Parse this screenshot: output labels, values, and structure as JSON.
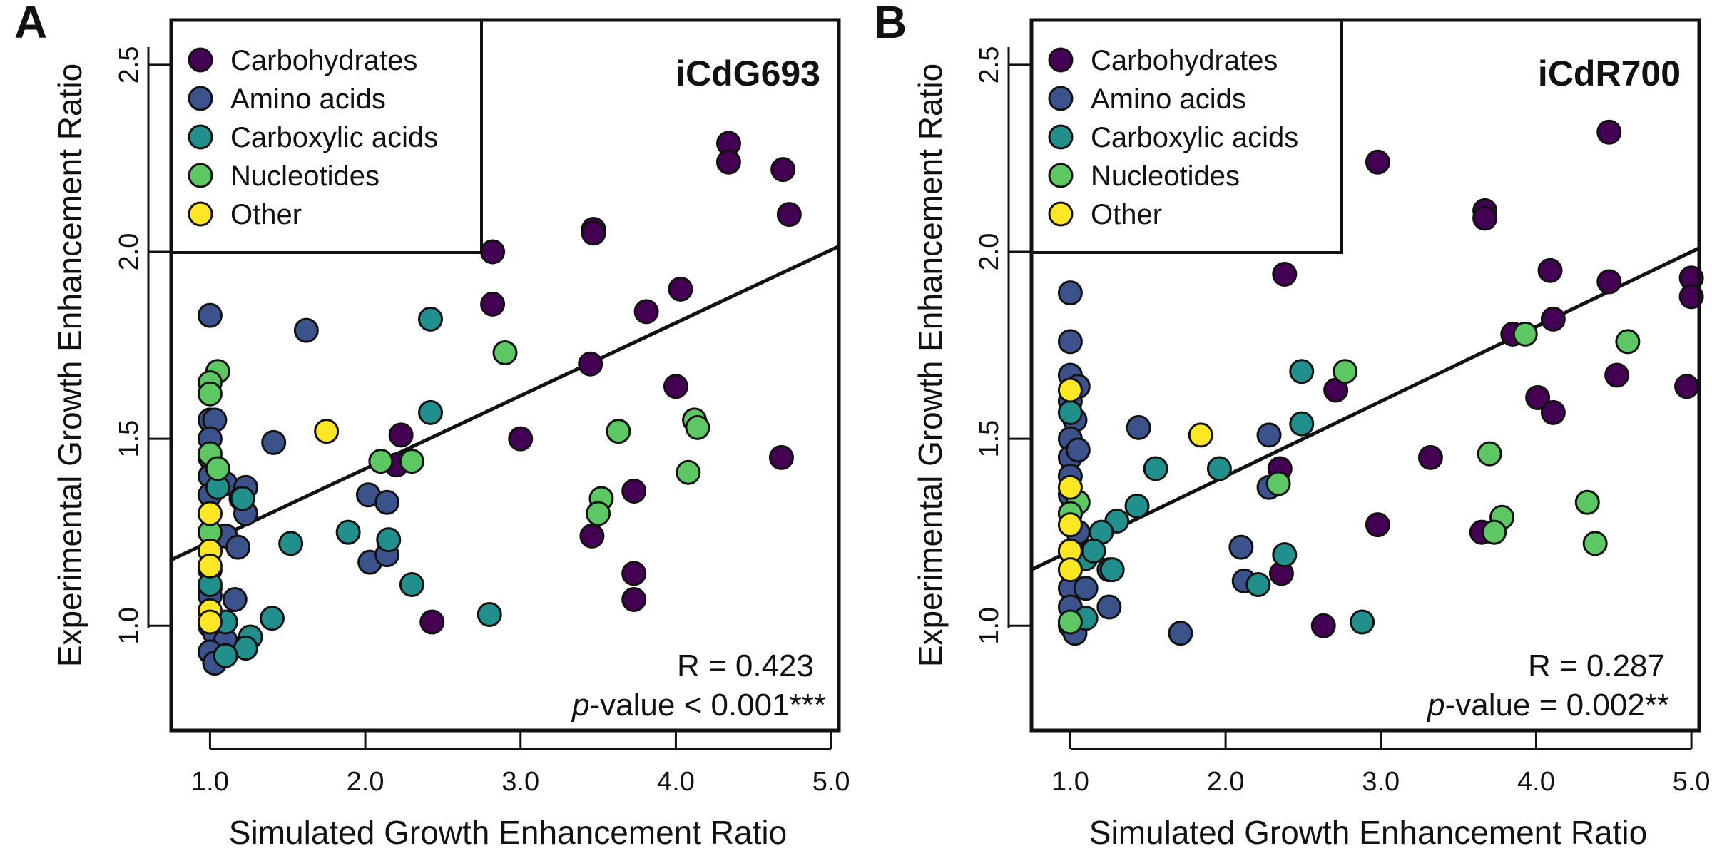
{
  "chart_data": [
    {
      "type": "scatter",
      "panel": "A",
      "model": "iCdG693",
      "xlabel": "Simulated Growth Enhancement Ratio",
      "ylabel": "Experimental Growth Enhancement Ratio",
      "xlim": [
        0.75,
        5.05
      ],
      "ylim": [
        0.72,
        2.62
      ],
      "xticks": [
        1.0,
        2.0,
        3.0,
        4.0,
        5.0
      ],
      "xtick_labels": [
        "1.0",
        "2.0",
        "3.0",
        "4.0",
        "5.0"
      ],
      "yticks": [
        1.0,
        1.5,
        2.0,
        2.5
      ],
      "ytick_labels": [
        "1.0",
        "1.5",
        "2.0",
        "2.5"
      ],
      "grid": false,
      "legend_position": "top-left",
      "r_text": "R = 0.423",
      "p_italic": "p",
      "p_rest": "-value < 0.001***",
      "regression": {
        "slope": 0.195,
        "intercept": 1.03
      },
      "series": [
        {
          "name": "Carbohydrates",
          "color": "#440154",
          "points": [
            [
              4.34,
              2.29
            ],
            [
              4.34,
              2.24
            ],
            [
              4.69,
              2.22
            ],
            [
              4.73,
              2.1
            ],
            [
              3.47,
              2.06
            ],
            [
              3.47,
              2.05
            ],
            [
              2.82,
              2.0
            ],
            [
              2.82,
              1.86
            ],
            [
              4.03,
              1.9
            ],
            [
              3.81,
              1.84
            ],
            [
              3.45,
              1.7
            ],
            [
              4.0,
              1.64
            ],
            [
              3.0,
              1.5
            ],
            [
              2.23,
              1.51
            ],
            [
              2.2,
              1.43
            ],
            [
              4.68,
              1.45
            ],
            [
              3.73,
              1.36
            ],
            [
              3.46,
              1.24
            ],
            [
              3.73,
              1.14
            ],
            [
              3.73,
              1.07
            ],
            [
              2.43,
              1.01
            ]
          ]
        },
        {
          "name": "Amino acids",
          "color": "#3b528b",
          "points": [
            [
              1.0,
              1.83
            ],
            [
              1.62,
              1.79
            ],
            [
              1.0,
              1.55
            ],
            [
              1.03,
              1.55
            ],
            [
              1.0,
              1.5
            ],
            [
              1.0,
              1.45
            ],
            [
              1.41,
              1.49
            ],
            [
              1.0,
              1.4
            ],
            [
              1.1,
              1.38
            ],
            [
              1.0,
              1.35
            ],
            [
              1.23,
              1.37
            ],
            [
              1.2,
              1.34
            ],
            [
              1.0,
              1.3
            ],
            [
              1.23,
              1.3
            ],
            [
              1.0,
              1.25
            ],
            [
              1.1,
              1.24
            ],
            [
              1.0,
              1.2
            ],
            [
              1.18,
              1.21
            ],
            [
              1.0,
              1.15
            ],
            [
              2.02,
              1.35
            ],
            [
              2.14,
              1.33
            ],
            [
              2.03,
              1.17
            ],
            [
              2.14,
              1.19
            ],
            [
              1.0,
              1.1
            ],
            [
              1.0,
              1.08
            ],
            [
              1.16,
              1.07
            ],
            [
              1.0,
              1.0
            ],
            [
              1.03,
              0.98
            ],
            [
              1.1,
              0.96
            ],
            [
              1.0,
              0.93
            ],
            [
              1.03,
              0.9
            ]
          ]
        },
        {
          "name": "Carboxylic acids",
          "color": "#21908c",
          "points": [
            [
              2.42,
              1.82
            ],
            [
              2.42,
              1.57
            ],
            [
              1.05,
              1.37
            ],
            [
              1.21,
              1.34
            ],
            [
              1.52,
              1.22
            ],
            [
              1.89,
              1.25
            ],
            [
              2.15,
              1.23
            ],
            [
              1.0,
              1.11
            ],
            [
              2.3,
              1.11
            ],
            [
              1.1,
              1.01
            ],
            [
              1.26,
              0.97
            ],
            [
              1.23,
              0.94
            ],
            [
              1.1,
              0.92
            ],
            [
              1.4,
              1.02
            ],
            [
              2.8,
              1.03
            ]
          ]
        },
        {
          "name": "Nucleotides",
          "color": "#5dc863",
          "points": [
            [
              1.05,
              1.68
            ],
            [
              1.0,
              1.65
            ],
            [
              1.0,
              1.62
            ],
            [
              2.9,
              1.73
            ],
            [
              3.63,
              1.52
            ],
            [
              4.12,
              1.55
            ],
            [
              4.14,
              1.53
            ],
            [
              2.1,
              1.44
            ],
            [
              2.3,
              1.44
            ],
            [
              1.0,
              1.46
            ],
            [
              1.05,
              1.42
            ],
            [
              3.52,
              1.34
            ],
            [
              3.5,
              1.3
            ],
            [
              4.08,
              1.41
            ],
            [
              1.0,
              1.25
            ]
          ]
        },
        {
          "name": "Other",
          "color": "#fde725",
          "points": [
            [
              1.75,
              1.52
            ],
            [
              1.0,
              1.3
            ],
            [
              1.0,
              1.2
            ],
            [
              1.0,
              1.16
            ],
            [
              1.0,
              1.04
            ],
            [
              1.0,
              1.01
            ]
          ]
        }
      ]
    },
    {
      "type": "scatter",
      "panel": "B",
      "model": "iCdR700",
      "xlabel": "Simulated Growth Enhancement Ratio",
      "ylabel": "Experimental Growth Enhancement Ratio",
      "xlim": [
        0.75,
        5.05
      ],
      "ylim": [
        0.72,
        2.62
      ],
      "xticks": [
        1.0,
        2.0,
        3.0,
        4.0,
        5.0
      ],
      "xtick_labels": [
        "1.0",
        "2.0",
        "3.0",
        "4.0",
        "5.0"
      ],
      "yticks": [
        1.0,
        1.5,
        2.0,
        2.5
      ],
      "ytick_labels": [
        "1.0",
        "1.5",
        "2.0",
        "2.5"
      ],
      "grid": false,
      "legend_position": "top-left",
      "r_text": "R = 0.287",
      "p_italic": "p",
      "p_rest": "-value = 0.002**",
      "regression": {
        "slope": 0.2,
        "intercept": 1.0
      },
      "series": [
        {
          "name": "Carbohydrates",
          "color": "#440154",
          "points": [
            [
              4.47,
              2.32
            ],
            [
              2.98,
              2.24
            ],
            [
              3.67,
              2.11
            ],
            [
              3.67,
              2.09
            ],
            [
              2.38,
              1.94
            ],
            [
              4.09,
              1.95
            ],
            [
              4.47,
              1.92
            ],
            [
              5.0,
              1.93
            ],
            [
              5.0,
              1.88
            ],
            [
              3.85,
              1.78
            ],
            [
              4.11,
              1.82
            ],
            [
              2.71,
              1.63
            ],
            [
              4.01,
              1.61
            ],
            [
              4.52,
              1.67
            ],
            [
              4.11,
              1.57
            ],
            [
              4.97,
              1.64
            ],
            [
              3.32,
              1.45
            ],
            [
              2.35,
              1.42
            ],
            [
              2.98,
              1.27
            ],
            [
              3.65,
              1.25
            ],
            [
              2.36,
              1.14
            ],
            [
              2.63,
              1.0
            ]
          ]
        },
        {
          "name": "Amino acids",
          "color": "#3b528b",
          "points": [
            [
              1.0,
              1.89
            ],
            [
              1.0,
              1.76
            ],
            [
              1.0,
              1.67
            ],
            [
              1.05,
              1.64
            ],
            [
              1.0,
              1.6
            ],
            [
              1.03,
              1.55
            ],
            [
              1.0,
              1.5
            ],
            [
              1.0,
              1.45
            ],
            [
              1.05,
              1.47
            ],
            [
              1.44,
              1.53
            ],
            [
              1.0,
              1.4
            ],
            [
              1.0,
              1.35
            ],
            [
              2.28,
              1.51
            ],
            [
              2.28,
              1.37
            ],
            [
              1.0,
              1.3
            ],
            [
              1.05,
              1.25
            ],
            [
              1.0,
              1.2
            ],
            [
              1.25,
              1.15
            ],
            [
              1.0,
              1.1
            ],
            [
              1.1,
              1.1
            ],
            [
              1.0,
              1.05
            ],
            [
              1.25,
              1.05
            ],
            [
              2.1,
              1.21
            ],
            [
              2.12,
              1.12
            ],
            [
              1.0,
              1.0
            ],
            [
              1.03,
              0.98
            ],
            [
              1.71,
              0.98
            ]
          ]
        },
        {
          "name": "Carboxylic acids",
          "color": "#21908c",
          "points": [
            [
              1.0,
              1.57
            ],
            [
              2.49,
              1.68
            ],
            [
              2.49,
              1.54
            ],
            [
              1.55,
              1.42
            ],
            [
              1.96,
              1.42
            ],
            [
              1.43,
              1.32
            ],
            [
              1.3,
              1.28
            ],
            [
              1.2,
              1.25
            ],
            [
              1.1,
              1.18
            ],
            [
              1.15,
              1.2
            ],
            [
              2.38,
              1.19
            ],
            [
              1.27,
              1.15
            ],
            [
              2.21,
              1.11
            ],
            [
              1.1,
              1.02
            ],
            [
              2.88,
              1.01
            ]
          ]
        },
        {
          "name": "Nucleotides",
          "color": "#5dc863",
          "points": [
            [
              2.77,
              1.68
            ],
            [
              3.93,
              1.78
            ],
            [
              4.59,
              1.76
            ],
            [
              3.7,
              1.46
            ],
            [
              2.34,
              1.38
            ],
            [
              1.05,
              1.33
            ],
            [
              1.0,
              1.3
            ],
            [
              3.78,
              1.29
            ],
            [
              3.73,
              1.25
            ],
            [
              4.33,
              1.33
            ],
            [
              4.38,
              1.22
            ],
            [
              1.0,
              1.01
            ]
          ]
        },
        {
          "name": "Other",
          "color": "#fde725",
          "points": [
            [
              1.0,
              1.63
            ],
            [
              1.84,
              1.51
            ],
            [
              1.0,
              1.37
            ],
            [
              1.0,
              1.27
            ],
            [
              1.0,
              1.2
            ],
            [
              1.0,
              1.15
            ]
          ]
        }
      ]
    }
  ]
}
